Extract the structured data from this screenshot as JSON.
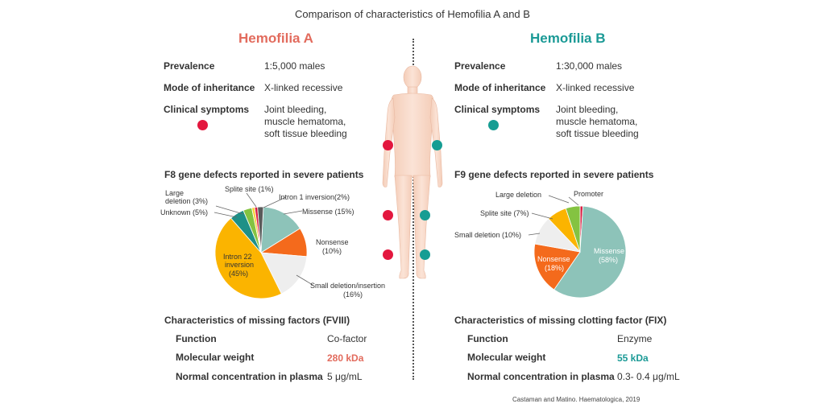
{
  "title": "Comparison of characteristics of Hemofilia A and B",
  "colors": {
    "a": "#e26b5d",
    "b": "#1b9a96",
    "dot_a": "#e3173e",
    "dot_b": "#169d93"
  },
  "a": {
    "heading": "Hemofilia A",
    "rows": [
      {
        "label": "Prevalence",
        "value": "1:5,000 males"
      },
      {
        "label": "Mode of inheritance",
        "value": "X-linked recessive"
      },
      {
        "label": "Clinical symptoms",
        "value_lines": [
          "Joint bleeding,",
          "muscle hematoma,",
          "soft tissue bleeding"
        ]
      }
    ],
    "pie_title": "F8 gene defects reported in severe patients",
    "missing_title": "Characteristics of missing factors (FVIII)",
    "missing": [
      {
        "label": "Function",
        "value": "Co-factor"
      },
      {
        "label": "Molecular weight",
        "value": "280 kDa"
      },
      {
        "label": "Normal concentration in plasma",
        "value": "5 μg/mL"
      }
    ]
  },
  "b": {
    "heading": "Hemofilia B",
    "rows": [
      {
        "label": "Prevalence",
        "value": "1:30,000 males"
      },
      {
        "label": "Mode of inheritance",
        "value": "X-linked recessive"
      },
      {
        "label": "Clinical symptoms",
        "value_lines": [
          "Joint bleeding,",
          "muscle hematoma,",
          "soft tissue bleeding"
        ]
      }
    ],
    "pie_title": "F9 gene defects reported in severe patients",
    "missing_title": "Characteristics of missing clotting factor (FIX)",
    "missing": [
      {
        "label": "Function",
        "value": "Enzyme"
      },
      {
        "label": "Molecular weight",
        "value": "55 kDa"
      },
      {
        "label": "Normal concentration in plasma",
        "value": "0.3- 0.4 μg/mL"
      }
    ]
  },
  "chart_data": [
    {
      "type": "pie",
      "title": "F8 gene defects reported in severe patients",
      "slices": [
        {
          "name": "Missense (15%)",
          "value": 15,
          "color": "#8dc3b9"
        },
        {
          "name": "Nonsense (10%)",
          "value": 10,
          "color": "#f46a1c"
        },
        {
          "name": "Small deletion/insertion (16%)",
          "value": 16,
          "color": "#eeeeee"
        },
        {
          "name": "Intron 22 inversion (45%)",
          "value": 45,
          "color": "#fbb400"
        },
        {
          "name": "Unknown (5%)",
          "value": 5,
          "color": "#1e9087"
        },
        {
          "name": "Large deletion (3%)",
          "value": 3,
          "color": "#84c341"
        },
        {
          "name": "Splite site (1%)",
          "value": 1,
          "color": "#f7d23b"
        },
        {
          "name": "Splite site (1%)",
          "value": 1,
          "color": "#d91f43"
        },
        {
          "name": "Intron 1 inversion(2%)",
          "value": 2,
          "color": "#5a5a5a"
        }
      ],
      "labels": {
        "intron1": "Intron 1 inversion(2%)",
        "splite": "Splite site (1%)",
        "large_1": "Large",
        "large_2": "deletion (3%)",
        "unknown": "Unknown (5%)",
        "missense": "Missense (15%)",
        "nonsense_1": "Nonsense",
        "nonsense_2": "(10%)",
        "intron22_1": "Intron 22",
        "intron22_2": "inversion",
        "intron22_3": "(45%)",
        "smalldel_1": "Small deletion/insertion",
        "smalldel_2": "(16%)"
      }
    },
    {
      "type": "pie",
      "title": "F9 gene defects reported in severe patients",
      "slices": [
        {
          "name": "Promoter",
          "value": 1,
          "color": "#d91f43"
        },
        {
          "name": "Missense (58%)",
          "value": 58,
          "color": "#8dc3b9"
        },
        {
          "name": "Nonsense (18%)",
          "value": 18,
          "color": "#f46a1c"
        },
        {
          "name": "Small deletion (10%)",
          "value": 10,
          "color": "#eeeeee"
        },
        {
          "name": "Splite site (7%)",
          "value": 7,
          "color": "#fbb400"
        },
        {
          "name": "Large deletion",
          "value": 5,
          "color": "#84c341"
        }
      ],
      "labels": {
        "promoter": "Promoter",
        "large": "Large deletion",
        "splite": "Splite site (7%)",
        "smalldel": "Small deletion (10%)",
        "missense_1": "Missense",
        "missense_2": "(58%)",
        "nonsense_1": "Nonsense",
        "nonsense_2": "(18%)"
      }
    }
  ],
  "citation": "Castaman and Matino. Haematologica, 2019"
}
